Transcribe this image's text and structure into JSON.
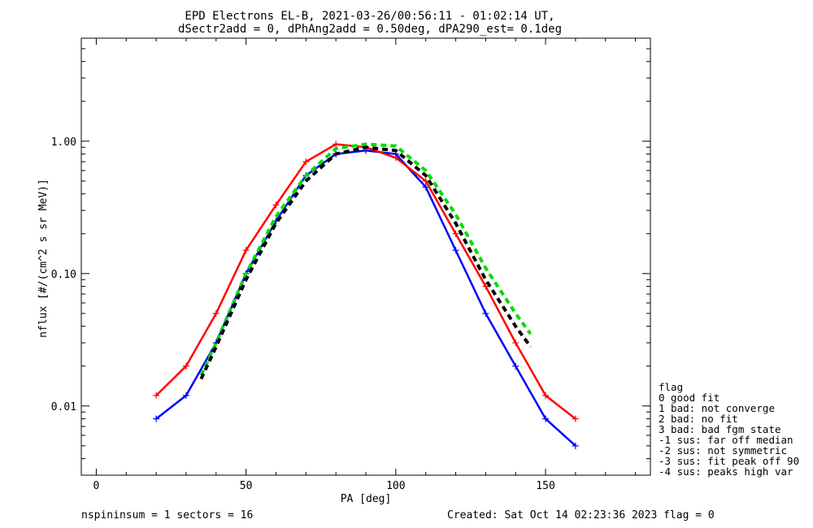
{
  "chart_data": {
    "type": "line",
    "title": "EPD Electrons EL-B, 2021-03-26/00:56:11 - 01:02:14 UT,",
    "subtitle": "dSectr2add = 0, dPhAng2add = 0.50deg, dPA290_est=   0.1deg",
    "xlabel": "PA [deg]",
    "ylabel": "nflux [#/(cm^2 s sr MeV)]",
    "xlim": [
      -5,
      185
    ],
    "ylim": [
      0.003,
      6.0
    ],
    "yscale": "log",
    "xticks": [
      "0",
      "50",
      "100",
      "150"
    ],
    "yticks": [
      "1.00",
      "0.10",
      "0.01"
    ],
    "legend_title": "flag",
    "legend": [
      " 0 good fit",
      " 1 bad: not converge",
      " 2 bad: no fit",
      " 3 bad: bad fgm state",
      "-1 sus: far off median",
      "-2 sus: not symmetric",
      "-3 sus: fit peak off 90",
      "-4 sus: peaks high var"
    ],
    "series": [
      {
        "color": "#0000ff",
        "x": [
          20,
          30,
          40,
          50,
          60,
          70,
          80,
          90,
          100,
          110,
          120,
          130,
          140,
          150,
          160
        ],
        "y": [
          0.008,
          0.012,
          0.03,
          0.1,
          0.25,
          0.55,
          0.8,
          0.85,
          0.8,
          0.45,
          0.15,
          0.05,
          0.02,
          0.008,
          0.005
        ]
      },
      {
        "color": "#ff0000",
        "x": [
          20,
          30,
          40,
          50,
          60,
          70,
          80,
          90,
          100,
          110,
          120,
          130,
          140,
          150,
          160
        ],
        "y": [
          0.012,
          0.02,
          0.05,
          0.15,
          0.33,
          0.7,
          0.95,
          0.9,
          0.75,
          0.5,
          0.2,
          0.08,
          0.03,
          0.012,
          0.008
        ]
      },
      {
        "name": "",
        "color": "#00dd00",
        "style": "dashed",
        "x": [
          35,
          40,
          50,
          60,
          70,
          80,
          90,
          100,
          110,
          120,
          130,
          140,
          145
        ],
        "y": [
          0.017,
          0.03,
          0.1,
          0.27,
          0.55,
          0.88,
          0.95,
          0.92,
          0.6,
          0.28,
          0.11,
          0.05,
          0.035
        ]
      },
      {
        "name": "",
        "color": "#000000",
        "style": "dashed",
        "x": [
          35,
          40,
          50,
          60,
          70,
          80,
          90,
          100,
          110,
          120,
          130,
          140,
          145
        ],
        "y": [
          0.016,
          0.028,
          0.09,
          0.24,
          0.5,
          0.8,
          0.9,
          0.85,
          0.55,
          0.24,
          0.09,
          0.04,
          0.028
        ]
      }
    ],
    "footer_left": "nspininsum =  1  sectors = 16",
    "footer_right": "Created: Sat Oct 14 02:23:36 2023    flag = 0"
  }
}
